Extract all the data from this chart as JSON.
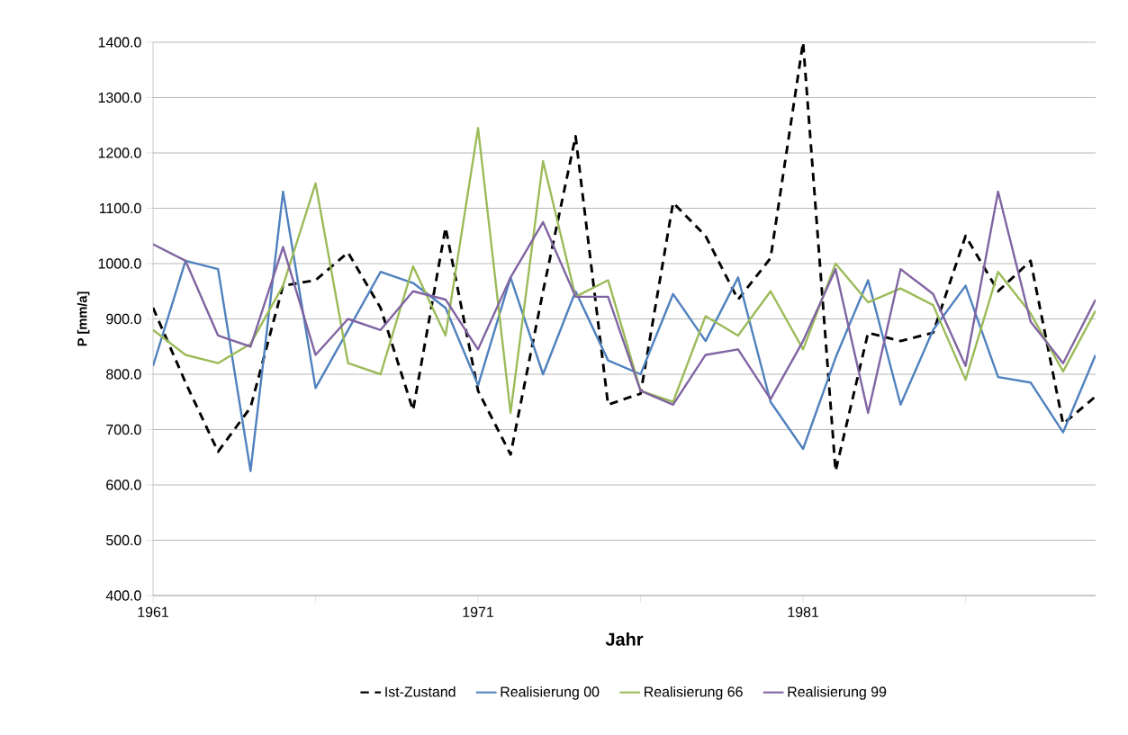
{
  "chart_data": {
    "type": "line",
    "xlabel": "Jahr",
    "ylabel": "P  [mm/a]",
    "x": [
      1961,
      1962,
      1963,
      1964,
      1965,
      1966,
      1967,
      1968,
      1969,
      1970,
      1971,
      1972,
      1973,
      1974,
      1975,
      1976,
      1977,
      1978,
      1979,
      1980,
      1981,
      1982,
      1983,
      1984,
      1985,
      1986,
      1987,
      1988,
      1989,
      1990
    ],
    "series": [
      {
        "name": "Ist-Zustand",
        "color": "#000000",
        "line_style": "dashed",
        "values": [
          920,
          785,
          660,
          740,
          960,
          970,
          1020,
          920,
          735,
          1065,
          770,
          655,
          950,
          1230,
          745,
          765,
          1110,
          1050,
          935,
          1010,
          1400,
          625,
          875,
          860,
          875,
          1050,
          950,
          1005,
          710,
          760
        ]
      },
      {
        "name": "Realisierung 00",
        "color": "#4f81bd",
        "values": [
          815,
          1005,
          990,
          625,
          1130,
          775,
          880,
          985,
          965,
          920,
          780,
          975,
          800,
          950,
          825,
          800,
          945,
          860,
          975,
          750,
          665,
          830,
          970,
          745,
          880,
          960,
          795,
          785,
          695,
          835
        ]
      },
      {
        "name": "Realisierung 66",
        "color": "#9bbb59",
        "values": [
          880,
          835,
          820,
          855,
          960,
          1145,
          820,
          800,
          995,
          870,
          1245,
          730,
          1185,
          940,
          970,
          770,
          750,
          905,
          870,
          950,
          845,
          1000,
          930,
          955,
          925,
          790,
          985,
          910,
          805,
          915
        ]
      },
      {
        "name": "Realisierung 99",
        "color": "#8064a2",
        "values": [
          1035,
          1005,
          870,
          850,
          1030,
          835,
          900,
          880,
          950,
          935,
          845,
          975,
          1075,
          940,
          940,
          770,
          745,
          835,
          845,
          755,
          860,
          990,
          730,
          990,
          945,
          815,
          1130,
          895,
          820,
          935
        ]
      }
    ],
    "xlim": [
      1961,
      1990
    ],
    "xticks": [
      1961,
      {
        "value": 1966,
        "label": null
      },
      1971,
      {
        "value": 1976,
        "label": null
      },
      1981,
      {
        "value": 1986,
        "label": null
      }
    ],
    "ylim": [
      400,
      1400
    ],
    "yticks": [
      {
        "value": 400,
        "label": "400.0"
      },
      {
        "value": 500,
        "label": "500.0"
      },
      {
        "value": 600,
        "label": "600.0"
      },
      {
        "value": 700,
        "label": "700.0"
      },
      {
        "value": 800,
        "label": "800.0"
      },
      {
        "value": 900,
        "label": "900.0"
      },
      {
        "value": 1000,
        "label": "1000.0"
      },
      {
        "value": 1100,
        "label": "1100.0"
      },
      {
        "value": 1200,
        "label": "1200.0"
      },
      {
        "value": 1300,
        "label": "1300.0"
      },
      {
        "value": 1400,
        "label": "1400.0"
      }
    ],
    "grid": "y",
    "legend": "bottom"
  }
}
